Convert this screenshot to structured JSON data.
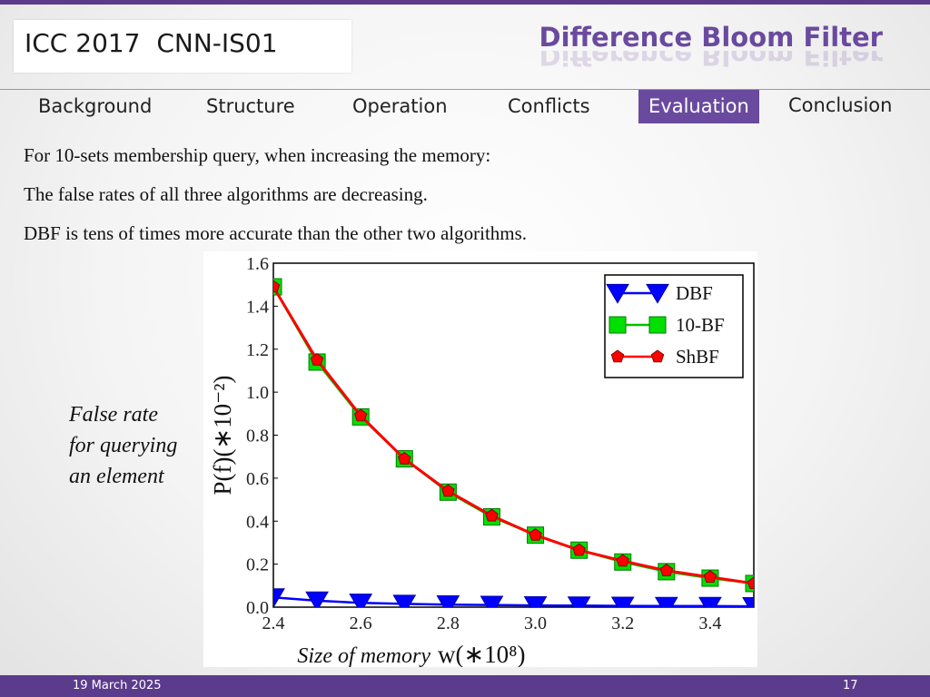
{
  "header": {
    "conference": "ICC 2017  CNN-IS01",
    "title": "Difference Bloom Filter"
  },
  "nav": {
    "items": [
      "Background",
      "Structure",
      "Operation",
      "Conflicts",
      "Evaluation",
      "Conclusion"
    ],
    "active": "Evaluation"
  },
  "bullets": [
    "For 10-sets membership query, when increasing the memory:",
    "The false rates of all three algorithms are decreasing.",
    "DBF is tens of times more accurate than the other two algorithms."
  ],
  "side_caption": [
    "False rate",
    "for querying",
    "an element"
  ],
  "chart_data": {
    "type": "line",
    "ylabel": "P(f)(∗10⁻²)",
    "xlabel_prefix": "Size of memory",
    "xlabel": "w(∗10⁸)",
    "xlim": [
      2.4,
      3.5
    ],
    "ylim": [
      0.0,
      1.6
    ],
    "xticks": [
      "2.4",
      "2.6",
      "2.8",
      "3.0",
      "3.2",
      "3.4"
    ],
    "yticks": [
      "0.0",
      "0.2",
      "0.4",
      "0.6",
      "0.8",
      "1.0",
      "1.2",
      "1.4",
      "1.6"
    ],
    "x": [
      2.4,
      2.5,
      2.6,
      2.7,
      2.8,
      2.9,
      3.0,
      3.1,
      3.2,
      3.3,
      3.4,
      3.5
    ],
    "series": [
      {
        "name": "DBF",
        "color": "#0000ff",
        "marker": "triangle-down",
        "values": [
          0.045,
          0.03,
          0.02,
          0.015,
          0.012,
          0.01,
          0.008,
          0.007,
          0.006,
          0.005,
          0.005,
          0.004
        ]
      },
      {
        "name": "10-BF",
        "color": "#00e000",
        "marker": "square",
        "values": [
          1.49,
          1.14,
          0.885,
          0.69,
          0.535,
          0.42,
          0.335,
          0.265,
          0.21,
          0.165,
          0.135,
          0.11
        ]
      },
      {
        "name": "ShBF",
        "color": "#ff0000",
        "marker": "pentagon",
        "values": [
          1.49,
          1.15,
          0.89,
          0.69,
          0.54,
          0.425,
          0.335,
          0.265,
          0.215,
          0.17,
          0.14,
          0.11
        ]
      }
    ],
    "legend_position": "top-right",
    "grid": false
  },
  "footer": {
    "date": "19 March 2025",
    "page": "17"
  }
}
